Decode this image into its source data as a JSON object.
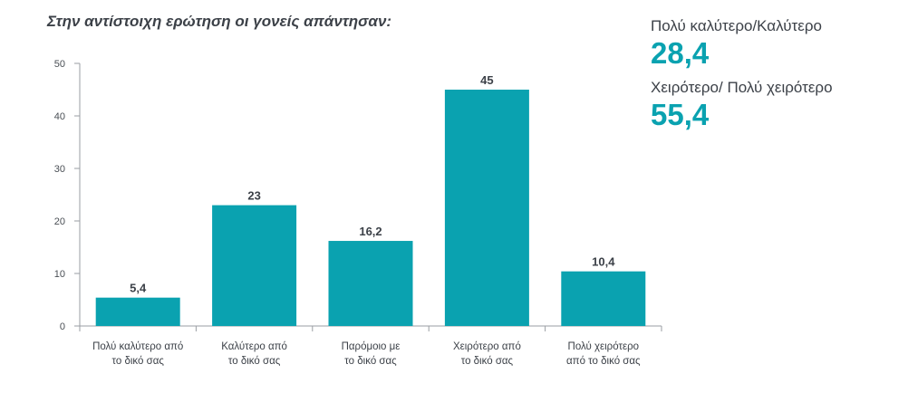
{
  "chart_data": {
    "type": "bar",
    "title": "Στην αντίστοιχη ερώτηση οι γονείς απάντησαν:",
    "categories": [
      [
        "Πολύ καλύτερο από",
        "το δικό σας"
      ],
      [
        "Καλύτερο από",
        "το δικό σας"
      ],
      [
        "Παρόμοιο με",
        "το δικό σας"
      ],
      [
        "Χειρότερο από",
        "το δικό σας"
      ],
      [
        "Πολύ χειρότερο",
        "από το δικό σας"
      ]
    ],
    "values": [
      5.4,
      23,
      16.2,
      45,
      10.4
    ],
    "value_labels": [
      "5,4",
      "23",
      "16,2",
      "45",
      "10,4"
    ],
    "yticks": [
      0,
      10,
      20,
      30,
      40,
      50
    ],
    "ylim": [
      0,
      50
    ],
    "xlabel": "",
    "ylabel": "",
    "grid": false,
    "bar_color": "#0aa2b0"
  },
  "summary": [
    {
      "label": "Πολύ καλύτερο/Καλύτερο",
      "value": "28,4"
    },
    {
      "label": "Χειρότερο/ Πολύ χειρότερο",
      "value": "55,4"
    }
  ],
  "colors": {
    "accent": "#0aa2b0",
    "text": "#3c4148",
    "axis": "#9a9ea3"
  }
}
